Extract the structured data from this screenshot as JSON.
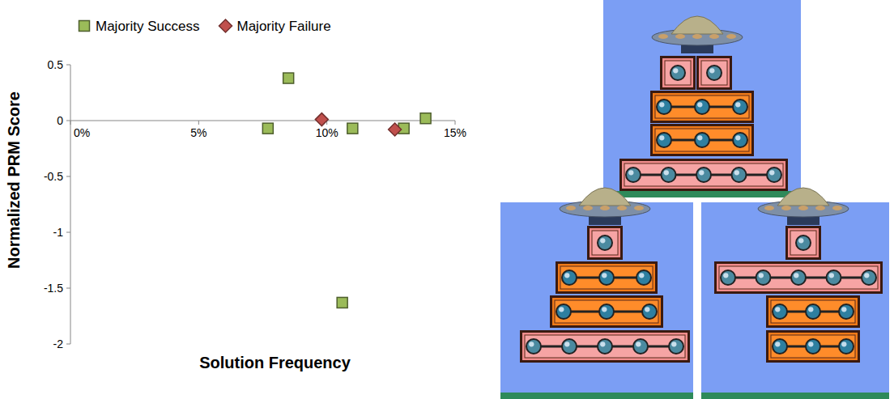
{
  "chart_data": {
    "type": "scatter",
    "xlabel": "Solution Frequency",
    "ylabel": "Normalized PRM Score",
    "xlim": [
      0,
      15
    ],
    "xticks": [
      {
        "value": 0,
        "label": "0%"
      },
      {
        "value": 5,
        "label": "5%"
      },
      {
        "value": 10,
        "label": "10%"
      },
      {
        "value": 15,
        "label": "15%"
      }
    ],
    "ylim": [
      -2,
      0.5
    ],
    "yticks": [
      -2,
      -1.5,
      -1,
      -0.5,
      0,
      0.5
    ],
    "legend": "top-left",
    "grid": false,
    "series": [
      {
        "name": "Majority Success",
        "color": "#9bbb59",
        "marker": "square",
        "x": [
          7.7,
          8.5,
          11.0,
          10.6,
          13.0,
          13.85
        ],
        "values": [
          -0.07,
          0.38,
          -0.07,
          -1.63,
          -0.07,
          0.02
        ]
      },
      {
        "name": "Majority Failure",
        "color": "#c0504d",
        "marker": "diamond",
        "x": [
          9.8,
          12.65
        ],
        "values": [
          0.01,
          -0.08
        ]
      }
    ]
  }
}
